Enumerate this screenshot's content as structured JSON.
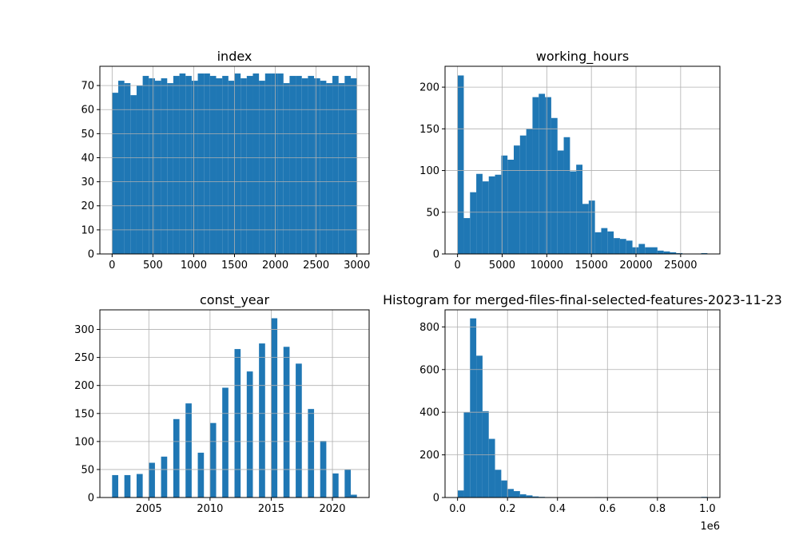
{
  "figure_title": "Histogram for merged-files-final-selected-features-2023-11-23",
  "chart_data": [
    {
      "type": "bar",
      "title": "index",
      "bins": 40,
      "bin_range": [
        0,
        3000
      ],
      "xlim": [
        -150,
        3150
      ],
      "ylim": [
        0,
        78
      ],
      "xticks": [
        0,
        500,
        1000,
        1500,
        2000,
        2500,
        3000
      ],
      "yticks": [
        0,
        10,
        20,
        30,
        40,
        50,
        60,
        70
      ],
      "grid": true,
      "color": "#1f77b4",
      "values": [
        67,
        72,
        71,
        66,
        70,
        74,
        73,
        72,
        73,
        71,
        74,
        75,
        74,
        72,
        75,
        75,
        74,
        73,
        74,
        72,
        75,
        73,
        74,
        75,
        72,
        75,
        75,
        75,
        71,
        74,
        74,
        73,
        74,
        73,
        72,
        71,
        74,
        71,
        74,
        73
      ]
    },
    {
      "type": "bar",
      "title": "working_hours",
      "bins": 40,
      "bin_range": [
        0,
        28000
      ],
      "xlim": [
        -1400,
        29400
      ],
      "ylim": [
        0,
        225
      ],
      "xticks": [
        0,
        5000,
        10000,
        15000,
        20000,
        25000
      ],
      "yticks": [
        0,
        50,
        100,
        150,
        200
      ],
      "grid": true,
      "color": "#1f77b4",
      "values": [
        214,
        43,
        74,
        96,
        87,
        93,
        95,
        118,
        113,
        130,
        142,
        150,
        188,
        192,
        188,
        163,
        124,
        140,
        99,
        107,
        60,
        64,
        26,
        31,
        27,
        19,
        18,
        16,
        8,
        12,
        8,
        8,
        4,
        3,
        2,
        1,
        0,
        0,
        0,
        1
      ]
    },
    {
      "type": "bar",
      "title": "const_year",
      "bins": 40,
      "bin_range": [
        2002,
        2022
      ],
      "xlim": [
        2001,
        2023
      ],
      "ylim": [
        0,
        335
      ],
      "xticks": [
        2005,
        2010,
        2015,
        2020
      ],
      "yticks": [
        0,
        50,
        100,
        150,
        200,
        250,
        300
      ],
      "grid": true,
      "color": "#1f77b4",
      "values": [
        40,
        0,
        40,
        0,
        42,
        0,
        62,
        0,
        73,
        0,
        140,
        0,
        168,
        0,
        80,
        0,
        133,
        0,
        196,
        0,
        265,
        0,
        225,
        0,
        275,
        0,
        320,
        0,
        269,
        0,
        239,
        0,
        158,
        0,
        101,
        0,
        43,
        0,
        50,
        5
      ]
    },
    {
      "type": "bar",
      "title": "Histogram for merged-files-final-selected-features-2023-11-23",
      "bins": 40,
      "bin_range": [
        0,
        1
      ],
      "xlim": [
        -0.05,
        1.05
      ],
      "ylim": [
        0,
        880
      ],
      "xticks": [
        0.0,
        0.2,
        0.4,
        0.6,
        0.8,
        1.0
      ],
      "xtick_labels": [
        "0.0",
        "0.2",
        "0.4",
        "0.6",
        "0.8",
        "1.0"
      ],
      "x_offset_label": "1e6",
      "yticks": [
        0,
        200,
        400,
        600,
        800
      ],
      "grid": true,
      "color": "#1f77b4",
      "values": [
        33,
        400,
        840,
        665,
        405,
        275,
        130,
        80,
        40,
        30,
        15,
        10,
        5,
        3,
        2,
        1,
        0,
        0,
        0,
        0,
        0,
        0,
        2,
        0,
        0,
        0,
        0,
        0,
        0,
        0,
        0,
        0,
        0,
        0,
        0,
        0,
        0,
        0,
        0,
        3
      ]
    }
  ]
}
